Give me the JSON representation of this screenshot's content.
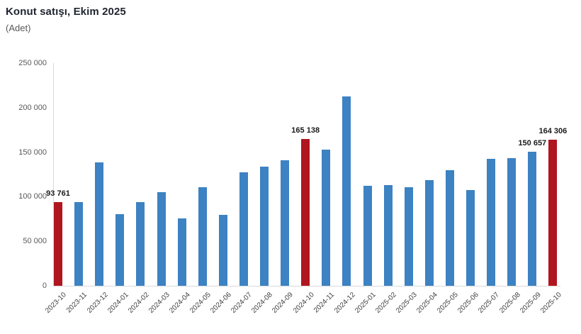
{
  "header": {
    "title": "Konut satışı, Ekim 2025",
    "subtitle": "(Adet)"
  },
  "colors": {
    "bar_default": "#3d82c2",
    "bar_highlight": "#b0161f",
    "axis_line": "#d9d9d9",
    "value_label_text": "#1a1a1a",
    "tick_text": "#595959"
  },
  "chart_data": {
    "type": "bar",
    "title": "Konut satışı, Ekim 2025",
    "unit_label": "(Adet)",
    "xlabel": "",
    "ylabel": "Adet",
    "categories": [
      "2023-10",
      "2023-11",
      "2023-12",
      "2024-01",
      "2024-02",
      "2024-03",
      "2024-04",
      "2024-05",
      "2024-06",
      "2024-07",
      "2024-08",
      "2024-09",
      "2024-10",
      "2024-11",
      "2024-12",
      "2025-01",
      "2025-02",
      "2025-03",
      "2025-04",
      "2025-05",
      "2025-06",
      "2025-07",
      "2025-08",
      "2025-09",
      "2025-10"
    ],
    "values": [
      93761,
      93738,
      138577,
      80308,
      93902,
      105476,
      75569,
      110588,
      79313,
      127088,
      134155,
      140919,
      165138,
      153025,
      212637,
      112173,
      112818,
      110795,
      118359,
      130025,
      107723,
      142858,
      143319,
      150657,
      164306
    ],
    "highlighted_categories": [
      "2023-10",
      "2024-10",
      "2025-10"
    ],
    "data_labels": [
      {
        "category": "2023-10",
        "text": "93 761"
      },
      {
        "category": "2024-10",
        "text": "165 138"
      },
      {
        "category": "2025-09",
        "text": "150 657"
      },
      {
        "category": "2025-10",
        "text": "164 306"
      }
    ],
    "ylim": [
      0,
      250000
    ],
    "ytick_interval": 50000,
    "ytick_labels": [
      "0",
      "50 000",
      "100 000",
      "150 000",
      "200 000",
      "250 000"
    ],
    "grid": false,
    "legend": false
  }
}
